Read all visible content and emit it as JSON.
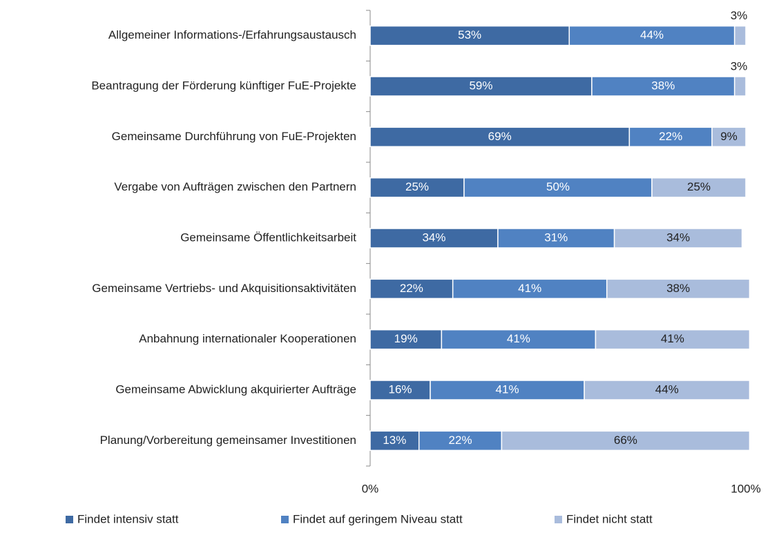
{
  "chart_data": {
    "type": "bar",
    "orientation": "horizontal",
    "stacked": true,
    "categories": [
      "Allgemeiner Informations-/Erfahrungsaustausch",
      "Beantragung der Förderung künftiger FuE-Projekte",
      "Gemeinsame Durchführung von FuE-Projekten",
      "Vergabe von Aufträgen zwischen den Partnern",
      "Gemeinsame Öffentlichkeitsarbeit",
      "Gemeinsame Vertriebs- und Akquisitionsaktivitäten",
      "Anbahnung internationaler Kooperationen",
      "Gemeinsame Abwicklung akquirierter Aufträge",
      "Planung/Vorbereitung gemeinsamer Investitionen"
    ],
    "series": [
      {
        "name": "Findet intensiv statt",
        "color": "#3e6aa3",
        "values": [
          53,
          59,
          69,
          25,
          34,
          22,
          19,
          16,
          13
        ],
        "value_labels": [
          "53%",
          "59%",
          "69%",
          "25%",
          "34%",
          "22%",
          "19%",
          "16%",
          "13%"
        ]
      },
      {
        "name": "Findet auf geringem Niveau statt",
        "color": "#5082c2",
        "values": [
          44,
          38,
          22,
          50,
          31,
          41,
          41,
          41,
          22
        ],
        "value_labels": [
          "44%",
          "38%",
          "22%",
          "50%",
          "31%",
          "41%",
          "41%",
          "41%",
          "22%"
        ]
      },
      {
        "name": "Findet nicht statt",
        "color": "#a9bcdc",
        "values": [
          3,
          3,
          9,
          25,
          34,
          38,
          41,
          44,
          66
        ],
        "value_labels": [
          "3%",
          "3%",
          "9%",
          "25%",
          "34%",
          "38%",
          "41%",
          "44%",
          "66%"
        ]
      }
    ],
    "xlim": [
      0,
      100
    ],
    "xticks": [
      {
        "value": 0,
        "label": "0%"
      },
      {
        "value": 100,
        "label": "100%"
      }
    ],
    "legend": "bottom"
  }
}
